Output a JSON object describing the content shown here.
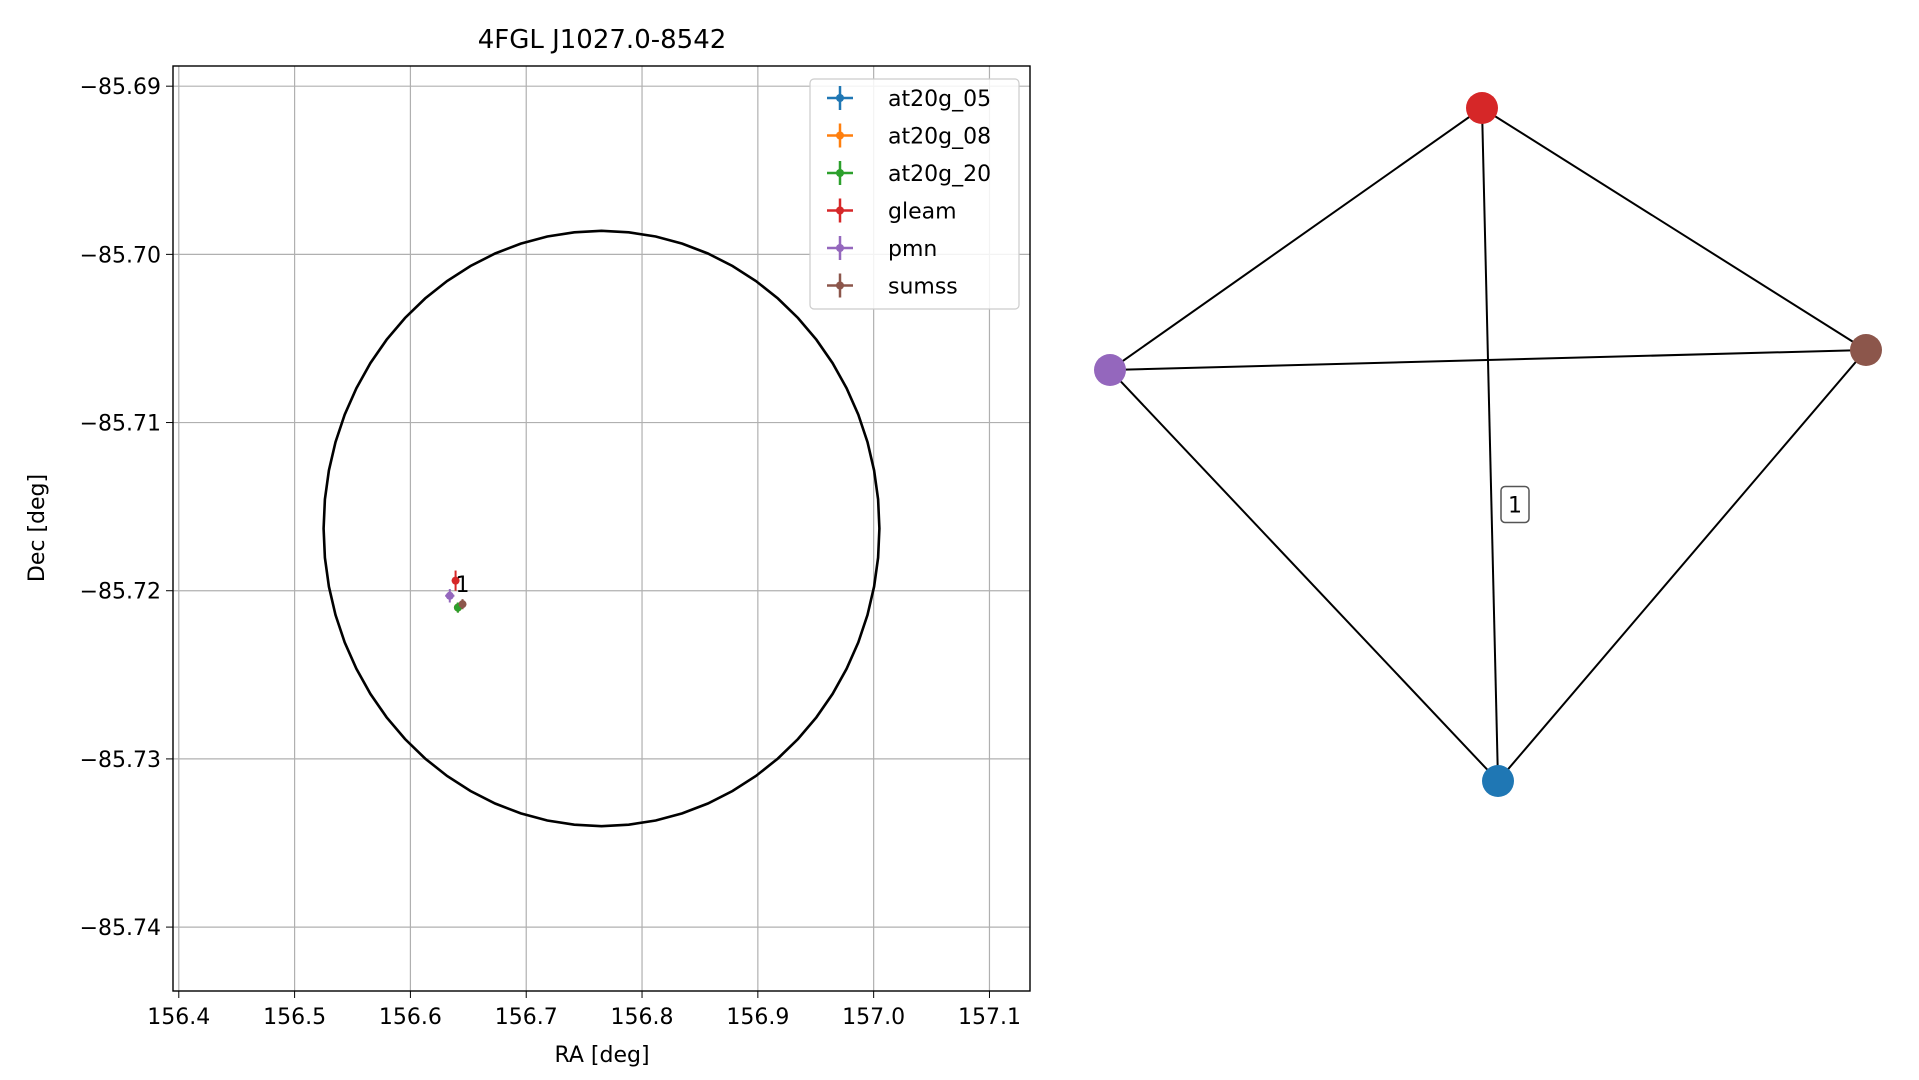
{
  "chart_data": [
    {
      "type": "scatter",
      "title": "4FGL J1027.0-8542",
      "xlabel": "RA [deg]",
      "ylabel": "Dec [deg]",
      "xlim": [
        156.395,
        157.135
      ],
      "ylim": [
        -85.7438,
        -85.6888
      ],
      "x_ticks": [
        156.4,
        156.5,
        156.6,
        156.7,
        156.8,
        156.9,
        157.0,
        157.1
      ],
      "x_tick_labels": [
        "156.4",
        "156.5",
        "156.6",
        "156.7",
        "156.8",
        "156.9",
        "157.0",
        "157.1"
      ],
      "y_ticks": [
        -85.69,
        -85.7,
        -85.71,
        -85.72,
        -85.73,
        -85.74
      ],
      "y_tick_labels": [
        "−85.69",
        "−85.70",
        "−85.71",
        "−85.72",
        "−85.73",
        "−85.74"
      ],
      "grid": true,
      "legend_position": "top-right",
      "series": [
        {
          "name": "at20g_05",
          "color": "#1f77b4",
          "points": [
            {
              "x": 156.641,
              "y": -85.721,
              "xerr": 0.002,
              "yerr": 0.0003
            }
          ]
        },
        {
          "name": "at20g_08",
          "color": "#ff7f0e",
          "points": [
            {
              "x": 156.641,
              "y": -85.721,
              "xerr": 0.002,
              "yerr": 0.0003
            }
          ]
        },
        {
          "name": "at20g_20",
          "color": "#2ca02c",
          "points": [
            {
              "x": 156.641,
              "y": -85.721,
              "xerr": 0.002,
              "yerr": 0.0003
            }
          ]
        },
        {
          "name": "gleam",
          "color": "#d62728",
          "points": [
            {
              "x": 156.639,
              "y": -85.7194,
              "xerr": 0.002,
              "yerr": 0.0006
            }
          ]
        },
        {
          "name": "pmn",
          "color": "#9467bd",
          "points": [
            {
              "x": 156.634,
              "y": -85.7203,
              "xerr": 0.004,
              "yerr": 0.0004
            }
          ]
        },
        {
          "name": "sumss",
          "color": "#8c564b",
          "points": [
            {
              "x": 156.645,
              "y": -85.7208,
              "xerr": 0.002,
              "yerr": 0.0003
            }
          ]
        }
      ],
      "ellipse": {
        "center_x": 156.765,
        "center_y": -85.7163,
        "semi_x_deg": 0.24,
        "semi_y_deg": 0.0177,
        "color": "#000000"
      },
      "annotations": [
        {
          "text": "1",
          "x": 156.645,
          "y": -85.7196
        }
      ]
    },
    {
      "type": "network",
      "nodes": [
        {
          "id": "gleam",
          "color": "#d62728"
        },
        {
          "id": "pmn",
          "color": "#9467bd"
        },
        {
          "id": "sumss",
          "color": "#8c564b"
        },
        {
          "id": "at20g_05",
          "color": "#1f77b4"
        }
      ],
      "edges": [
        {
          "source": "gleam",
          "target": "pmn",
          "label": ""
        },
        {
          "source": "gleam",
          "target": "sumss",
          "label": ""
        },
        {
          "source": "gleam",
          "target": "at20g_05",
          "label": "1"
        },
        {
          "source": "pmn",
          "target": "sumss",
          "label": ""
        },
        {
          "source": "pmn",
          "target": "at20g_05",
          "label": ""
        },
        {
          "source": "sumss",
          "target": "at20g_05",
          "label": ""
        }
      ]
    }
  ]
}
